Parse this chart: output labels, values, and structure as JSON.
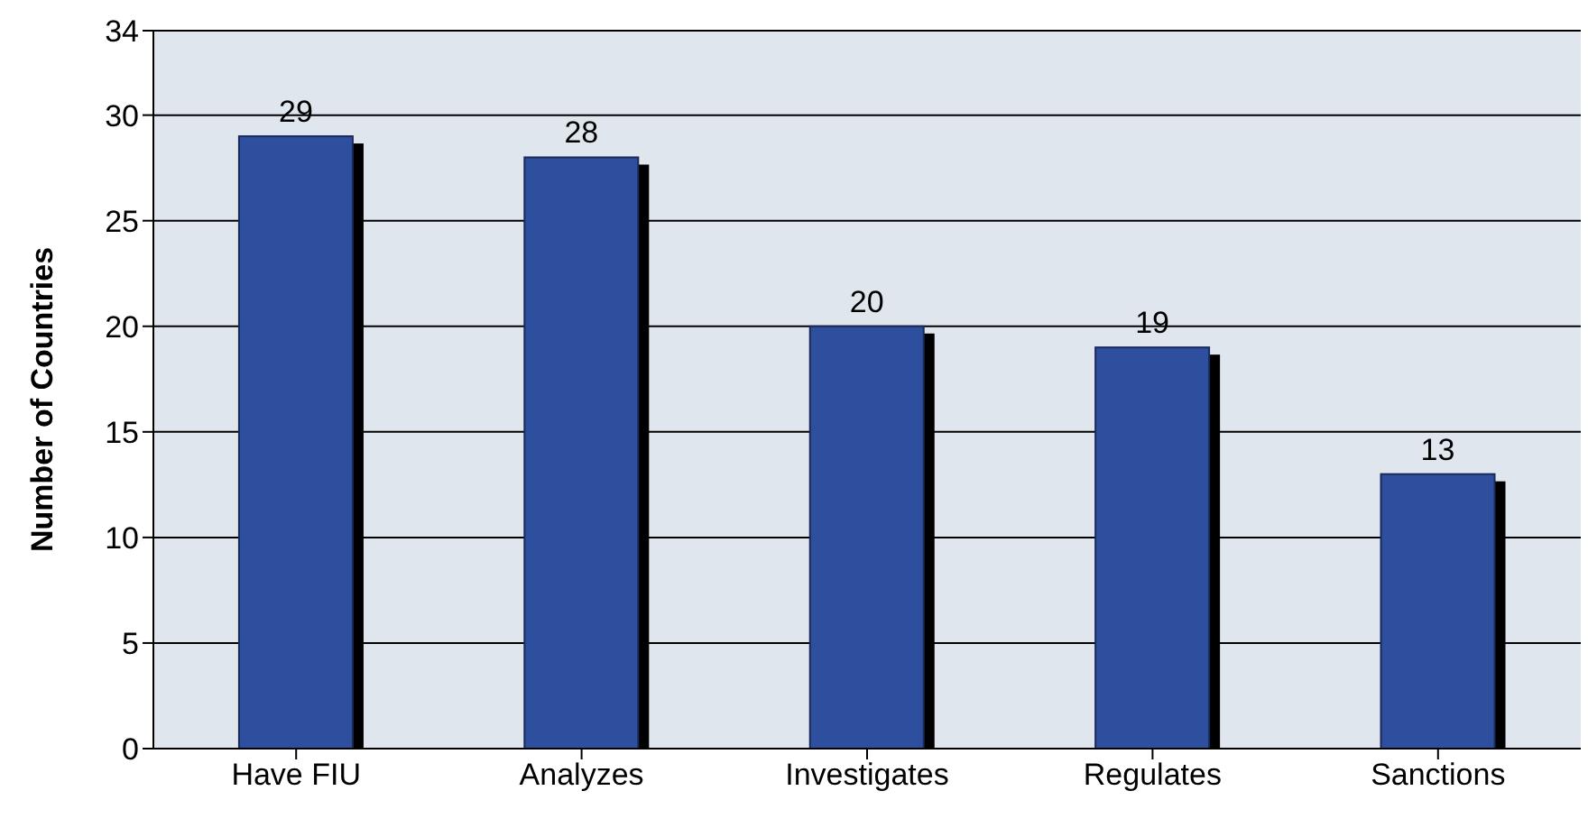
{
  "chart_data": {
    "type": "bar",
    "ylabel": "Number of Countries",
    "categories": [
      "Have FIU",
      "Analyzes",
      "Investigates",
      "Regulates",
      "Sanctions"
    ],
    "values": [
      29,
      28,
      20,
      19,
      13
    ],
    "color": "#2e4f9e",
    "ylim": [
      0,
      34
    ],
    "yticks": [
      0,
      5,
      10,
      15,
      20,
      25,
      30,
      34
    ],
    "grid": "y",
    "data_labels": true
  }
}
